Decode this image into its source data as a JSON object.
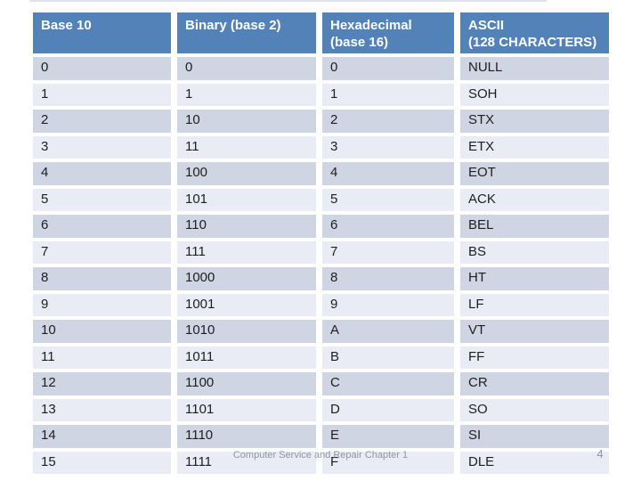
{
  "slide": {
    "table": {
      "columns": [
        "Base 10",
        "Binary (base 2)",
        "Hexadecimal\n(base 16)",
        "ASCII\n(128 CHARACTERS)"
      ],
      "rows": [
        [
          "0",
          "0",
          "0",
          "NULL"
        ],
        [
          "1",
          "1",
          "1",
          "SOH"
        ],
        [
          "2",
          "10",
          "2",
          "STX"
        ],
        [
          "3",
          "11",
          "3",
          "ETX"
        ],
        [
          "4",
          "100",
          "4",
          "EOT"
        ],
        [
          "5",
          "101",
          "5",
          "ACK"
        ],
        [
          "6",
          "110",
          "6",
          "BEL"
        ],
        [
          "7",
          "111",
          "7",
          "BS"
        ],
        [
          "8",
          "1000",
          "8",
          "HT"
        ],
        [
          "9",
          "1001",
          "9",
          "LF"
        ],
        [
          "10",
          "1010",
          "A",
          "VT"
        ],
        [
          "11",
          "1011",
          "B",
          "FF"
        ],
        [
          "12",
          "1100",
          "C",
          "CR"
        ],
        [
          "13",
          "1101",
          "D",
          "SO"
        ],
        [
          "14",
          "1110",
          "E",
          "SI"
        ],
        [
          "15",
          "1111",
          "F",
          "DLE"
        ]
      ]
    },
    "footer": {
      "text": "Computer Service and Repair Chapter 1",
      "page_number": "4"
    },
    "colors": {
      "header_bg": "#5282b8",
      "header_text": "#ffffff",
      "band_dark": "#cfd5e3",
      "band_light": "#e9ecf4"
    }
  }
}
